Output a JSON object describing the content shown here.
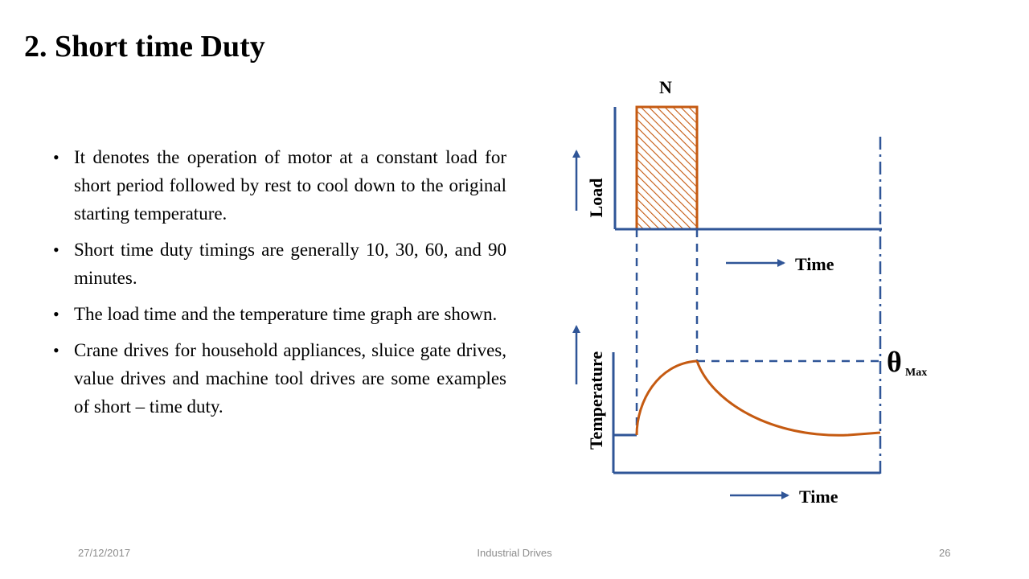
{
  "slide": {
    "title": "2. Short time Duty",
    "bullets": [
      "It denotes the operation of motor at a constant load for short period followed by rest to cool down to the original starting temperature.",
      "Short time duty timings are generally 10, 30, 60, and 90 minutes.",
      "The load time and the temperature time graph are shown.",
      "Crane drives for household appliances, sluice gate drives, value drives and machine tool drives are some examples of short – time duty."
    ],
    "bullet_symbol": "•"
  },
  "diagram": {
    "load_axis_label": "Load",
    "load_time_label": "Time",
    "load_period_label": "N",
    "temp_axis_label": "Temperature",
    "temp_time_label": "Time",
    "theta_symbol": "θ",
    "theta_subscript": "Max",
    "colors": {
      "axis": "#2f5597",
      "load_fill": "#c55a11",
      "curve": "#c55a11"
    }
  },
  "footer": {
    "date": "27/12/2017",
    "center": "Industrial Drives",
    "page": "26"
  }
}
